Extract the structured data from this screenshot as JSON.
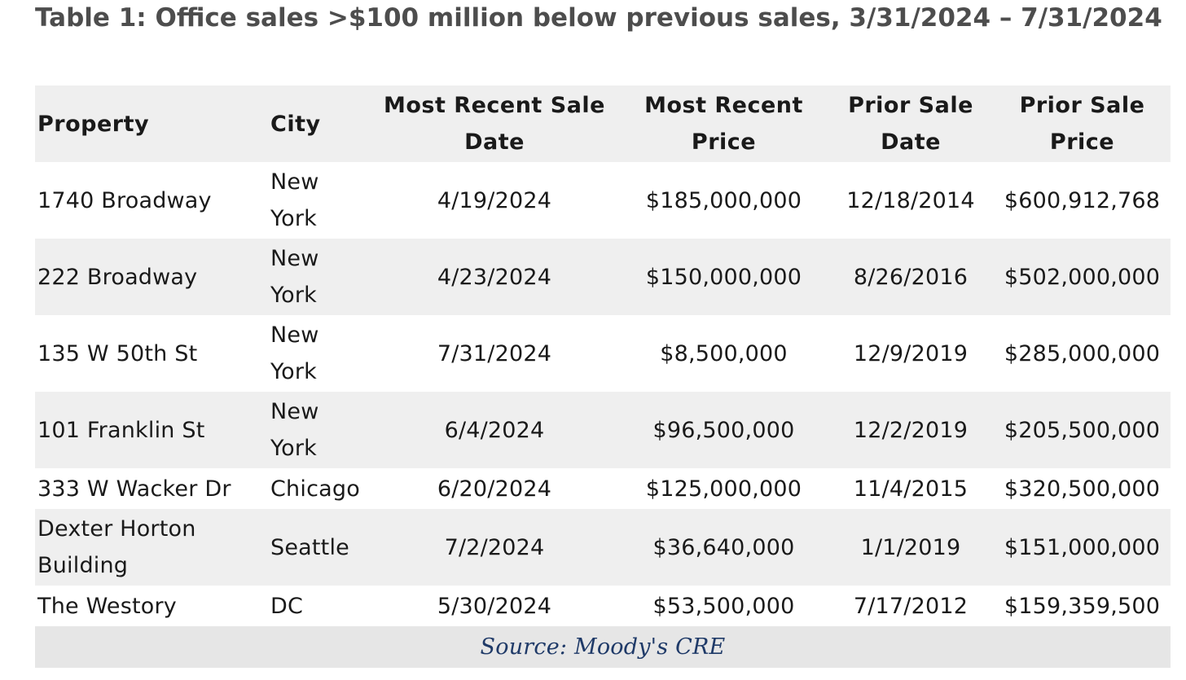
{
  "title": "Table 1: Office sales >$100 million below previous sales, 3/31/2024 – 7/31/2024",
  "table": {
    "headers": {
      "property": "Property",
      "city": "City",
      "recent_date": "Most Recent Sale Date",
      "recent_price": "Most Recent Price",
      "prior_date": "Prior Sale Date",
      "prior_price": "Prior Sale Price"
    },
    "rows": [
      {
        "property": "1740 Broadway",
        "city": "New York",
        "recent_date": "4/19/2024",
        "recent_price": "$185,000,000",
        "prior_date": "12/18/2014",
        "prior_price": "$600,912,768"
      },
      {
        "property": "222 Broadway",
        "city": "New York",
        "recent_date": "4/23/2024",
        "recent_price": "$150,000,000",
        "prior_date": "8/26/2016",
        "prior_price": "$502,000,000"
      },
      {
        "property": "135 W 50th St",
        "city": "New York",
        "recent_date": "7/31/2024",
        "recent_price": "$8,500,000",
        "prior_date": "12/9/2019",
        "prior_price": "$285,000,000"
      },
      {
        "property": "101 Franklin St",
        "city": "New York",
        "recent_date": "6/4/2024",
        "recent_price": "$96,500,000",
        "prior_date": "12/2/2019",
        "prior_price": "$205,500,000"
      },
      {
        "property": "333 W Wacker Dr",
        "city": "Chicago",
        "recent_date": "6/20/2024",
        "recent_price": "$125,000,000",
        "prior_date": "11/4/2015",
        "prior_price": "$320,500,000"
      },
      {
        "property": "Dexter Horton Building",
        "city": "Seattle",
        "recent_date": "7/2/2024",
        "recent_price": "$36,640,000",
        "prior_date": "1/1/2019",
        "prior_price": "$151,000,000"
      },
      {
        "property": "The Westory",
        "city": "DC",
        "recent_date": "5/30/2024",
        "recent_price": "$53,500,000",
        "prior_date": "7/17/2012",
        "prior_price": "$159,359,500"
      }
    ],
    "source": "Source: Moody's CRE"
  },
  "colors": {
    "title": "#4d4d4d",
    "band": "#efefef",
    "source_band": "#e6e6e6",
    "source_text": "#1f3a68"
  }
}
